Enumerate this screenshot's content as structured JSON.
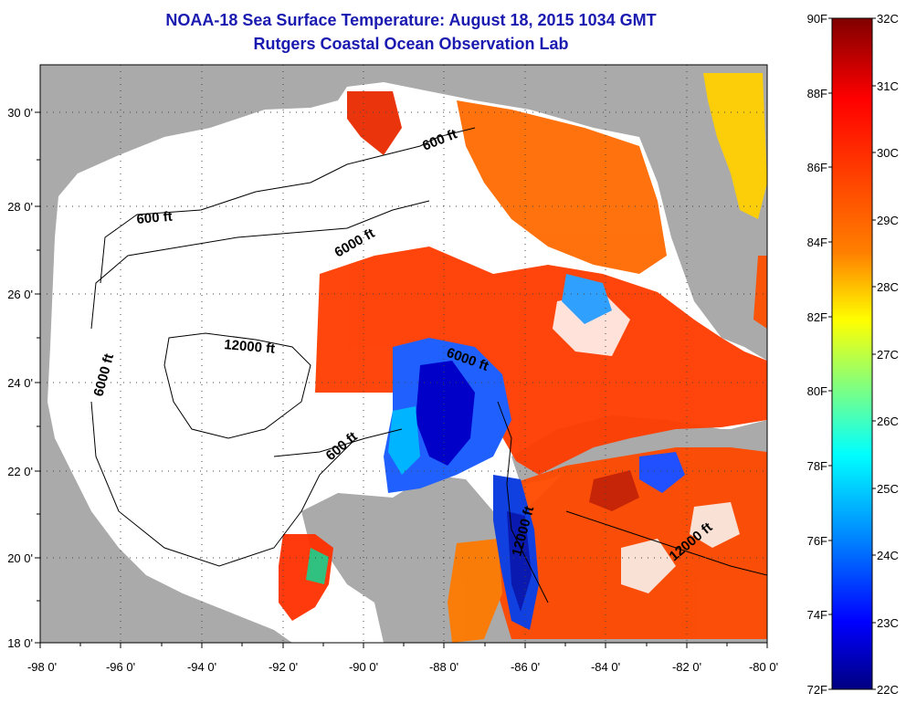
{
  "title": "NOAA-18 Sea Surface Temperature:  August 18, 2015 1034 GMT",
  "subtitle": "Rutgers Coastal Ocean Observation Lab",
  "map": {
    "lat_ticks": [
      "30 0'",
      "28 0'",
      "26 0'",
      "24 0'",
      "22 0'",
      "20 0'",
      "18 0'"
    ],
    "lon_ticks": [
      "-98 0'",
      "-96 0'",
      "-94 0'",
      "-92 0'",
      "-90 0'",
      "-88 0'",
      "-86 0'",
      "-84 0'",
      "-82 0'",
      "-80 0'"
    ],
    "contour_labels": [
      "600 ft",
      "600 ft",
      "6000 ft",
      "6000 ft",
      "12000 ft",
      "6000 ft",
      "600 ft",
      "12000 ft",
      "12000 ft"
    ],
    "land_color": "#aaaaaa",
    "cloud_color": "#ffffff"
  },
  "colorbar": {
    "f_labels": [
      "90F",
      "88F",
      "86F",
      "84F",
      "82F",
      "80F",
      "78F",
      "76F",
      "74F",
      "72F"
    ],
    "c_labels": [
      "32C",
      "31C",
      "30C",
      "29C",
      "28C",
      "27C",
      "26C",
      "25C",
      "24C",
      "23C",
      "22C"
    ],
    "colors": [
      "#800000",
      "#ff0000",
      "#ff8000",
      "#ffff00",
      "#80ff80",
      "#00ffff",
      "#0080ff",
      "#0000ff",
      "#000080"
    ]
  }
}
